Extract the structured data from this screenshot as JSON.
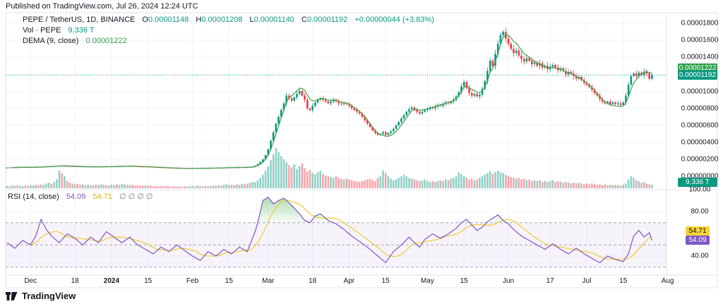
{
  "published_bar": {
    "text": "Published on TradingView.com, Jul 26, 2024 12:24 UTC"
  },
  "legend": {
    "symbol_row": {
      "title": "PEPE / TetherUS, 1D, BINANCE",
      "o_label": "O",
      "o": "0.00001148",
      "h_label": "H",
      "h": "0.00001208",
      "l_label": "L",
      "l": "0.00001140",
      "c_label": "C",
      "c": "0.00001192",
      "change": "+0.00000044 (+3.83%)"
    },
    "volume_row": {
      "label": "Vol · PEPE",
      "value": "9.336 T"
    },
    "dema_row": {
      "label": "DEMA (9, close)",
      "value": "0.00001222"
    }
  },
  "rsi_row": {
    "label": "RSI (14, close)",
    "value": "54.09",
    "ma_value": "54.71",
    "hidden_values": "∅ ∅ ∅ ∅"
  },
  "price_axis": {
    "ticks": [
      {
        "label": "0.00001800",
        "price": 1800
      },
      {
        "label": "0.00001600",
        "price": 1600
      },
      {
        "label": "0.00001400",
        "price": 1400
      },
      {
        "label": "0.00001000",
        "price": 1000
      },
      {
        "label": "0.00000800",
        "price": 800
      },
      {
        "label": "0.00000600",
        "price": 600
      },
      {
        "label": "0.00000400",
        "price": 400
      },
      {
        "label": "0.00000200",
        "price": 200
      },
      {
        "label": "0.00000000",
        "price": 0
      }
    ],
    "dema_badge": "0.00001222",
    "price_badge": "0.00001192",
    "volume_badge": "9.336 T"
  },
  "rsi_axis": {
    "ticks": [
      {
        "label": "100.00",
        "value": 100
      },
      {
        "label": "80.00",
        "value": 80
      },
      {
        "label": "40.00",
        "value": 40
      }
    ],
    "ma_badge": "54.71",
    "rsi_badge": "54.09"
  },
  "time_axis": {
    "ticks": [
      {
        "label": "Dec",
        "day": 9
      },
      {
        "label": "18",
        "day": 26
      },
      {
        "label": "2024",
        "day": 40,
        "major": true
      },
      {
        "label": "15",
        "day": 54
      },
      {
        "label": "Feb",
        "day": 71
      },
      {
        "label": "15",
        "day": 85
      },
      {
        "label": "Mar",
        "day": 100
      },
      {
        "label": "18",
        "day": 117
      },
      {
        "label": "Apr",
        "day": 131
      },
      {
        "label": "15",
        "day": 145
      },
      {
        "label": "May",
        "day": 161
      },
      {
        "label": "15",
        "day": 175
      },
      {
        "label": "Jun",
        "day": 192
      },
      {
        "label": "17",
        "day": 208
      },
      {
        "label": "Jul",
        "day": 222
      },
      {
        "label": "15",
        "day": 236
      },
      {
        "label": "Aug",
        "day": 253
      }
    ]
  },
  "footer": {
    "brand": "TradingView"
  },
  "colors": {
    "up": "#089981",
    "down": "#F23645",
    "vol_up": "rgba(8,153,129,0.45)",
    "vol_down": "rgba(242,54,69,0.45)",
    "dema_line": "#43a047",
    "dema_badge_bg": "#2f9e4f",
    "price_badge_bg": "#089981",
    "volume_badge_bg": "#089981",
    "rsi_line": "#7e57c2",
    "rsi_ma_line": "#f0ce3e",
    "rsi_badge_bg": "#7e57c2",
    "rsi_ma_badge_bg": "#f5d33a",
    "band_fill": "rgba(126,87,194,0.07)",
    "band_dash": "#a4a7b2",
    "overbought_fill": "#66bb6a",
    "grid": "#f0f3fa",
    "frame": "#e0e3eb",
    "text": "#131722",
    "muted": "#787b86"
  },
  "chart_data": {
    "type": "candlestick",
    "title": "PEPE / TetherUS, 1D, BINANCE",
    "panes": [
      "price+volume",
      "RSI (14)"
    ],
    "price_unit_note": "closes_1e8 are close prices multiplied by 1e8 (e.g. 1192 = 0.00001192 USDT)",
    "x_note": "one value per daily candle, day 0 ≈ Nov 22 2023, last day = Jul 26 2024",
    "ylim_price": [
      0.0,
      1.92e-05
    ],
    "ylim_rsi_visible": [
      23,
      105
    ],
    "closes_1e8": [
      103,
      105,
      104,
      107,
      106,
      108,
      110,
      108,
      107,
      108,
      110,
      109,
      112,
      111,
      113,
      115,
      118,
      116,
      120,
      123,
      125,
      122,
      124,
      121,
      119,
      120,
      118,
      117,
      115,
      116,
      114,
      115,
      113,
      114,
      112,
      113,
      115,
      114,
      116,
      115,
      117,
      116,
      118,
      117,
      119,
      121,
      120,
      122,
      121,
      119,
      117,
      116,
      114,
      115,
      113,
      112,
      110,
      108,
      107,
      105,
      104,
      103,
      102,
      100,
      99,
      98,
      97,
      96,
      95,
      94,
      95,
      96,
      95,
      97,
      96,
      98,
      97,
      99,
      98,
      100,
      99,
      101,
      100,
      102,
      104,
      103,
      105,
      104,
      106,
      105,
      107,
      106,
      110,
      108,
      112,
      125,
      145,
      170,
      200,
      250,
      320,
      420,
      520,
      620,
      700,
      780,
      860,
      950,
      920,
      890,
      930,
      970,
      1005,
      950,
      900,
      800,
      780,
      830,
      870,
      900,
      920,
      900,
      880,
      860,
      880,
      900,
      880,
      860,
      850,
      860,
      850,
      830,
      800,
      780,
      760,
      740,
      700,
      660,
      620,
      580,
      540,
      510,
      490,
      500,
      520,
      490,
      510,
      530,
      560,
      600,
      640,
      680,
      720,
      760,
      790,
      810,
      780,
      760,
      740,
      760,
      780,
      790,
      810,
      800,
      820,
      840,
      830,
      850,
      870,
      860,
      880,
      900,
      940,
      990,
      1060,
      1110,
      1040,
      980,
      950,
      970,
      940,
      960,
      1030,
      1120,
      1240,
      1360,
      1300,
      1440,
      1560,
      1660,
      1700,
      1620,
      1560,
      1500,
      1450,
      1480,
      1420,
      1380,
      1350,
      1390,
      1360,
      1320,
      1340,
      1300,
      1330,
      1280,
      1300,
      1260,
      1290,
      1310,
      1280,
      1250,
      1270,
      1240,
      1200,
      1230,
      1210,
      1180,
      1150,
      1170,
      1130,
      1100,
      1080,
      1050,
      1020,
      980,
      950,
      910,
      880,
      860,
      880,
      850,
      870,
      850,
      860,
      840,
      870,
      950,
      1080,
      1180,
      1210,
      1180,
      1220,
      1190,
      1230,
      1210,
      1148,
      1192
    ],
    "volumes_rel": [
      6,
      5,
      7,
      6,
      8,
      6,
      5,
      7,
      6,
      8,
      7,
      9,
      8,
      10,
      9,
      12,
      14,
      11,
      16,
      22,
      45,
      38,
      30,
      18,
      14,
      12,
      10,
      11,
      9,
      10,
      8,
      9,
      8,
      7,
      9,
      8,
      10,
      9,
      8,
      7,
      9,
      8,
      10,
      9,
      11,
      10,
      9,
      8,
      9,
      7,
      8,
      7,
      6,
      7,
      6,
      7,
      5,
      6,
      5,
      6,
      5,
      6,
      5,
      4,
      5,
      4,
      5,
      4,
      5,
      4,
      5,
      6,
      5,
      7,
      6,
      5,
      6,
      5,
      6,
      7,
      6,
      8,
      7,
      9,
      10,
      8,
      9,
      8,
      10,
      9,
      11,
      10,
      12,
      14,
      16,
      15,
      20,
      26,
      34,
      44,
      55,
      70,
      85,
      100,
      90,
      80,
      72,
      65,
      58,
      52,
      60,
      48,
      55,
      62,
      50,
      42,
      46,
      38,
      35,
      40,
      44,
      36,
      32,
      30,
      28,
      26,
      30,
      26,
      24,
      22,
      24,
      22,
      20,
      18,
      17,
      16,
      18,
      20,
      22,
      24,
      20,
      18,
      26,
      30,
      45,
      38,
      30,
      24,
      20,
      22,
      26,
      30,
      34,
      30,
      26,
      24,
      22,
      20,
      18,
      20,
      22,
      18,
      16,
      18,
      16,
      18,
      20,
      18,
      22,
      20,
      24,
      26,
      30,
      40,
      36,
      30,
      26,
      22,
      24,
      20,
      22,
      26,
      30,
      34,
      38,
      42,
      36,
      40,
      44,
      40,
      38,
      34,
      30,
      28,
      26,
      24,
      26,
      22,
      24,
      20,
      22,
      18,
      20,
      18,
      20,
      16,
      18,
      16,
      18,
      20,
      16,
      18,
      16,
      14,
      16,
      14,
      12,
      14,
      12,
      14,
      12,
      10,
      12,
      10,
      12,
      10,
      9,
      10,
      8,
      10,
      8,
      9,
      8,
      9,
      8,
      7,
      9,
      12,
      22,
      30,
      26,
      20,
      18,
      14,
      16,
      12,
      10,
      9
    ],
    "rsi_points": [
      [
        0,
        52
      ],
      [
        3,
        47
      ],
      [
        6,
        54
      ],
      [
        9,
        50
      ],
      [
        11,
        58
      ],
      [
        13,
        73
      ],
      [
        15,
        64
      ],
      [
        17,
        58
      ],
      [
        20,
        52
      ],
      [
        23,
        60
      ],
      [
        26,
        56
      ],
      [
        29,
        50
      ],
      [
        32,
        57
      ],
      [
        35,
        52
      ],
      [
        38,
        62
      ],
      [
        41,
        57
      ],
      [
        44,
        52
      ],
      [
        47,
        57
      ],
      [
        50,
        50
      ],
      [
        53,
        46
      ],
      [
        56,
        42
      ],
      [
        59,
        48
      ],
      [
        62,
        44
      ],
      [
        65,
        50
      ],
      [
        68,
        45
      ],
      [
        71,
        40
      ],
      [
        74,
        36
      ],
      [
        77,
        44
      ],
      [
        80,
        40
      ],
      [
        83,
        46
      ],
      [
        86,
        42
      ],
      [
        89,
        48
      ],
      [
        92,
        44
      ],
      [
        95,
        62
      ],
      [
        96,
        70
      ],
      [
        97,
        80
      ],
      [
        98,
        90
      ],
      [
        100,
        93
      ],
      [
        102,
        87
      ],
      [
        104,
        90
      ],
      [
        106,
        92
      ],
      [
        108,
        88
      ],
      [
        110,
        83
      ],
      [
        112,
        78
      ],
      [
        114,
        72
      ],
      [
        116,
        70
      ],
      [
        118,
        76
      ],
      [
        120,
        78
      ],
      [
        123,
        72
      ],
      [
        126,
        69
      ],
      [
        129,
        64
      ],
      [
        132,
        58
      ],
      [
        135,
        53
      ],
      [
        138,
        48
      ],
      [
        141,
        42
      ],
      [
        144,
        36
      ],
      [
        145,
        34
      ],
      [
        148,
        44
      ],
      [
        151,
        50
      ],
      [
        154,
        57
      ],
      [
        156,
        52
      ],
      [
        158,
        48
      ],
      [
        160,
        55
      ],
      [
        163,
        60
      ],
      [
        166,
        56
      ],
      [
        169,
        60
      ],
      [
        172,
        65
      ],
      [
        174,
        70
      ],
      [
        176,
        73
      ],
      [
        178,
        68
      ],
      [
        180,
        63
      ],
      [
        182,
        66
      ],
      [
        184,
        71
      ],
      [
        186,
        74
      ],
      [
        188,
        77
      ],
      [
        190,
        72
      ],
      [
        192,
        69
      ],
      [
        194,
        64
      ],
      [
        197,
        58
      ],
      [
        200,
        54
      ],
      [
        203,
        50
      ],
      [
        206,
        46
      ],
      [
        209,
        51
      ],
      [
        212,
        46
      ],
      [
        215,
        42
      ],
      [
        218,
        47
      ],
      [
        221,
        42
      ],
      [
        224,
        38
      ],
      [
        227,
        34
      ],
      [
        230,
        40
      ],
      [
        233,
        37
      ],
      [
        236,
        35
      ],
      [
        238,
        42
      ],
      [
        240,
        58
      ],
      [
        242,
        63
      ],
      [
        244,
        57
      ],
      [
        246,
        61
      ],
      [
        247,
        54.09
      ]
    ],
    "rsi_levels": {
      "overbought": 70,
      "middle": 50,
      "oversold": 30
    },
    "last_candle_1e8": {
      "open": 1148,
      "high": 1208,
      "low": 1140,
      "close": 1192
    },
    "last_change": "+0.00000044 (+3.83%)",
    "last_volume": "9.336 T",
    "dema_last": 1222,
    "rsi_last": 54.09,
    "rsi_ma_last": 54.71
  }
}
